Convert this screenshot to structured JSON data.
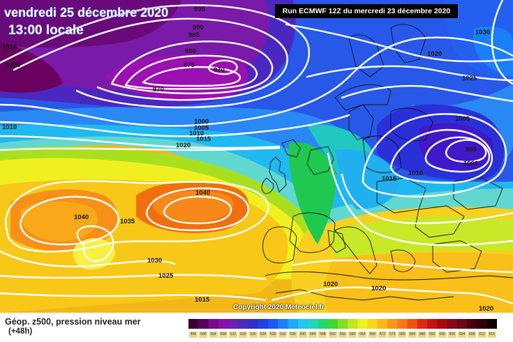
{
  "header": {
    "date": "vendredi 25 décembre 2020",
    "time": "13:00 locale",
    "run": "Run ECMWF 12Z du mercredi 23 décembre 2020"
  },
  "map": {
    "copyright": "Copyright 2020 Meteociel.fr",
    "pressure_labels": [
      {
        "id": "p1005",
        "text": "1005"
      },
      {
        "id": "p995a",
        "text": "995"
      },
      {
        "id": "p990",
        "text": "990"
      },
      {
        "id": "p985",
        "text": "985"
      },
      {
        "id": "p980",
        "text": "980"
      },
      {
        "id": "p975",
        "text": "975"
      },
      {
        "id": "p970a",
        "text": "970"
      },
      {
        "id": "p970b",
        "text": "970"
      },
      {
        "id": "p1010a",
        "text": "1010"
      },
      {
        "id": "p1010b",
        "text": "1010"
      },
      {
        "id": "p1000a",
        "text": "1000"
      },
      {
        "id": "p1005b",
        "text": "1005"
      },
      {
        "id": "p1010c",
        "text": "1010"
      },
      {
        "id": "p1015a",
        "text": "1015"
      },
      {
        "id": "p1020a",
        "text": "1020"
      },
      {
        "id": "p1030",
        "text": "1030"
      },
      {
        "id": "p1020b",
        "text": "1020"
      },
      {
        "id": "p1025a",
        "text": "1025"
      },
      {
        "id": "p1005c",
        "text": "1005"
      },
      {
        "id": "p995b",
        "text": "995"
      },
      {
        "id": "p1000b",
        "text": "1000"
      },
      {
        "id": "p1010d",
        "text": "1010"
      },
      {
        "id": "p1015b",
        "text": "1015"
      },
      {
        "id": "p1040a",
        "text": "1040"
      },
      {
        "id": "p1040b",
        "text": "1040"
      },
      {
        "id": "p1035",
        "text": "1035"
      },
      {
        "id": "p1030b",
        "text": "1030"
      },
      {
        "id": "p1025b",
        "text": "1025"
      },
      {
        "id": "p1015c",
        "text": "1015"
      },
      {
        "id": "p1020c",
        "text": "1020"
      },
      {
        "id": "p1020d",
        "text": "1020"
      },
      {
        "id": "p1020e",
        "text": "1020"
      }
    ]
  },
  "legend": {
    "field_label": "Géop. z500, pression niveau mer",
    "lead": "(+48h)",
    "scale_values": [
      "496",
      "500",
      "504",
      "508",
      "512",
      "516",
      "520",
      "524",
      "528",
      "532",
      "536",
      "540",
      "544",
      "548",
      "552",
      "556",
      "560",
      "564",
      "568",
      "572",
      "576",
      "580",
      "584",
      "588",
      "592",
      "596",
      "600",
      "604",
      "608",
      "612",
      "616"
    ],
    "scale_colors": [
      "#3a0030",
      "#5a0060",
      "#7a0a8a",
      "#8a10a8",
      "#6a20b0",
      "#4a2ab8",
      "#3030c8",
      "#2040e0",
      "#1a5af0",
      "#1a80f8",
      "#20a8f8",
      "#20c8f0",
      "#20d8c0",
      "#20d870",
      "#40d830",
      "#80e020",
      "#c0e820",
      "#f0f020",
      "#f8d818",
      "#f8b818",
      "#f89818",
      "#f87818",
      "#f05010",
      "#e02810",
      "#c81010",
      "#a80808",
      "#880818",
      "#680818",
      "#480010",
      "#300008",
      "#100000"
    ]
  }
}
